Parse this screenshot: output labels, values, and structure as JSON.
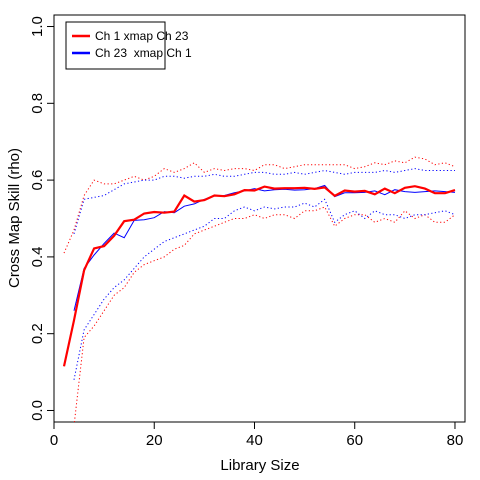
{
  "chart_data": {
    "type": "line",
    "xlabel": "Library Size",
    "ylabel": "Cross Map Skill (rho)",
    "xlim": [
      0,
      82
    ],
    "ylim": [
      -0.03,
      1.03
    ],
    "x_ticks": [
      0,
      20,
      40,
      60,
      80
    ],
    "y_ticks": [
      0.0,
      0.2,
      0.4,
      0.6,
      0.8,
      1.0
    ],
    "legend_position": "top-left",
    "grid": false,
    "x": [
      2,
      4,
      6,
      8,
      10,
      12,
      14,
      16,
      18,
      20,
      22,
      24,
      26,
      28,
      30,
      32,
      34,
      36,
      38,
      40,
      42,
      44,
      46,
      48,
      50,
      52,
      54,
      56,
      58,
      60,
      62,
      64,
      66,
      68,
      70,
      72,
      74,
      76,
      78,
      80
    ],
    "series": [
      {
        "name": "Ch 1 xmap Ch 23",
        "color": "#ff0000",
        "style": "solid-thick",
        "values": [
          0.115,
          0.235,
          0.365,
          0.422,
          0.428,
          0.455,
          0.493,
          0.497,
          0.513,
          0.517,
          0.515,
          0.518,
          0.56,
          0.544,
          0.548,
          0.56,
          0.558,
          0.563,
          0.574,
          0.573,
          0.583,
          0.578,
          0.579,
          0.579,
          0.58,
          0.577,
          0.581,
          0.559,
          0.573,
          0.57,
          0.572,
          0.563,
          0.578,
          0.566,
          0.58,
          0.584,
          0.578,
          0.566,
          0.566,
          0.574
        ]
      },
      {
        "name": "Ch 23  xmap Ch 1",
        "color": "#0000ff",
        "style": "solid-thin",
        "values": [
          null,
          0.26,
          0.37,
          0.405,
          0.435,
          0.462,
          0.45,
          0.495,
          0.497,
          0.502,
          0.518,
          0.515,
          0.532,
          0.538,
          0.55,
          0.56,
          0.56,
          0.567,
          0.572,
          0.578,
          0.572,
          0.575,
          0.576,
          0.574,
          0.575,
          0.578,
          0.586,
          0.557,
          0.567,
          0.567,
          0.568,
          0.572,
          0.562,
          0.575,
          0.57,
          0.568,
          0.57,
          0.572,
          0.57,
          0.568
        ]
      },
      {
        "name": "",
        "color": "#ff0000",
        "style": "dotted",
        "values": [
          0.41,
          0.47,
          0.56,
          0.6,
          0.59,
          0.59,
          0.6,
          0.61,
          0.6,
          0.61,
          0.63,
          0.62,
          0.63,
          0.645,
          0.62,
          0.63,
          0.625,
          0.63,
          0.63,
          0.625,
          0.64,
          0.64,
          0.63,
          0.635,
          0.64,
          0.64,
          0.64,
          0.64,
          0.64,
          0.63,
          0.635,
          0.645,
          0.64,
          0.65,
          0.645,
          0.66,
          0.655,
          0.64,
          0.645,
          0.635
        ]
      },
      {
        "name": "",
        "color": "#0000ff",
        "style": "dotted",
        "values": [
          null,
          0.46,
          0.55,
          0.555,
          0.56,
          0.575,
          0.59,
          0.595,
          0.6,
          0.6,
          0.61,
          0.61,
          0.605,
          0.61,
          0.61,
          0.615,
          0.61,
          0.61,
          0.615,
          0.62,
          0.62,
          0.615,
          0.615,
          0.62,
          0.615,
          0.62,
          0.625,
          0.62,
          0.615,
          0.62,
          0.62,
          0.62,
          0.625,
          0.62,
          0.625,
          0.63,
          0.625,
          0.625,
          0.625,
          0.625
        ]
      },
      {
        "name": "",
        "color": "#ff0000",
        "style": "dotted",
        "values": [
          null,
          -0.04,
          0.19,
          0.22,
          0.26,
          0.3,
          0.32,
          0.36,
          0.38,
          0.39,
          0.4,
          0.42,
          0.43,
          0.46,
          0.47,
          0.48,
          0.49,
          0.5,
          0.5,
          0.51,
          0.5,
          0.51,
          0.51,
          0.5,
          0.52,
          0.52,
          0.53,
          0.48,
          0.5,
          0.51,
          0.51,
          0.49,
          0.5,
          0.49,
          0.52,
          0.5,
          0.51,
          0.49,
          0.49,
          0.51
        ]
      },
      {
        "name": "",
        "color": "#0000ff",
        "style": "dotted",
        "values": [
          null,
          0.08,
          0.21,
          0.25,
          0.29,
          0.32,
          0.34,
          0.37,
          0.4,
          0.42,
          0.44,
          0.45,
          0.46,
          0.47,
          0.48,
          0.5,
          0.5,
          0.52,
          0.53,
          0.52,
          0.53,
          0.525,
          0.53,
          0.53,
          0.54,
          0.53,
          0.55,
          0.49,
          0.51,
          0.52,
          0.5,
          0.52,
          0.51,
          0.51,
          0.5,
          0.51,
          0.51,
          0.515,
          0.52,
          0.51
        ]
      }
    ]
  }
}
